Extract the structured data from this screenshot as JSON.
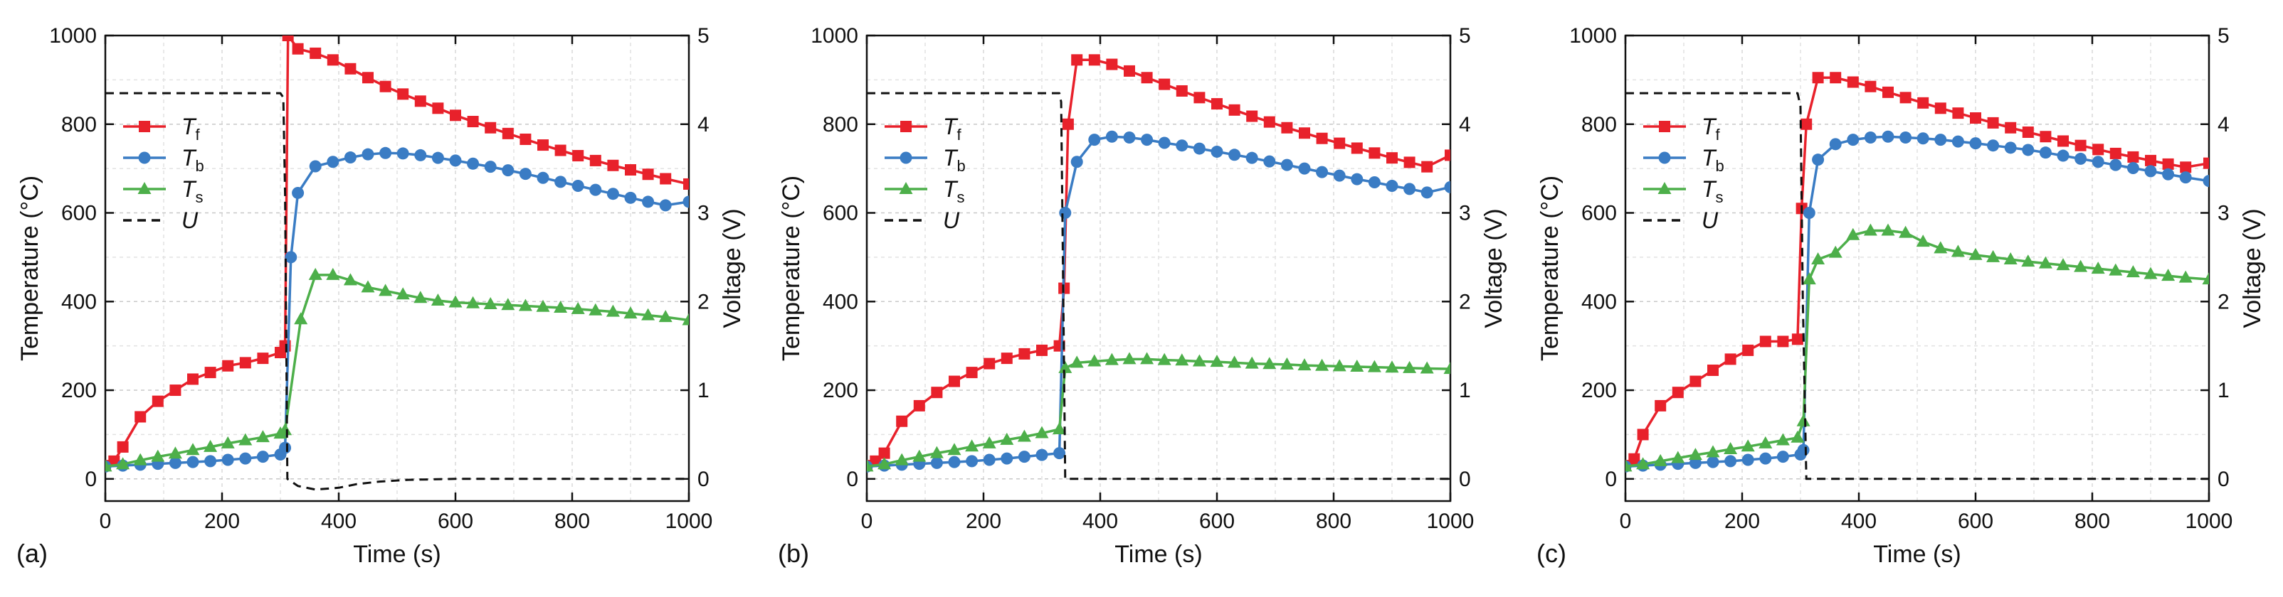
{
  "chart_data": [
    {
      "type": "line",
      "panel_label": "(a)",
      "xlabel": "Time (s)",
      "ylabel": "Temperature (°C)",
      "y2label": "Voltage (V)",
      "xlim": [
        0,
        1000
      ],
      "ylim": [
        -50,
        1000
      ],
      "y2lim": [
        -0.25,
        5
      ],
      "xticks": [
        0,
        200,
        400,
        600,
        800,
        1000
      ],
      "yticks": [
        0,
        200,
        400,
        600,
        800,
        1000
      ],
      "y2ticks": [
        0,
        1,
        2,
        3,
        4,
        5
      ],
      "grid": true,
      "legend_position": "left",
      "series": [
        {
          "name": "Tf",
          "sub": "f",
          "color": "#e8212b",
          "marker": "square",
          "axis": "left",
          "x": [
            0,
            15,
            30,
            60,
            90,
            120,
            150,
            180,
            210,
            240,
            270,
            300,
            308,
            313,
            330,
            360,
            390,
            420,
            450,
            480,
            510,
            540,
            570,
            600,
            630,
            660,
            690,
            720,
            750,
            780,
            810,
            840,
            870,
            900,
            930,
            960,
            1000
          ],
          "y": [
            30,
            40,
            72,
            140,
            175,
            200,
            225,
            240,
            255,
            262,
            272,
            285,
            300,
            1000,
            970,
            960,
            945,
            925,
            905,
            885,
            868,
            852,
            836,
            820,
            806,
            792,
            779,
            766,
            753,
            741,
            729,
            718,
            707,
            697,
            687,
            677,
            665
          ]
        },
        {
          "name": "Tb",
          "sub": "b",
          "color": "#3a7cc4",
          "marker": "circle",
          "axis": "left",
          "x": [
            0,
            30,
            60,
            90,
            120,
            150,
            180,
            210,
            240,
            270,
            300,
            308,
            318,
            330,
            360,
            390,
            420,
            450,
            480,
            510,
            540,
            570,
            600,
            630,
            660,
            690,
            720,
            750,
            780,
            810,
            840,
            870,
            900,
            930,
            960,
            1000
          ],
          "y": [
            28,
            30,
            32,
            34,
            36,
            38,
            40,
            43,
            46,
            50,
            55,
            70,
            500,
            645,
            705,
            715,
            725,
            732,
            735,
            734,
            730,
            724,
            718,
            711,
            704,
            696,
            688,
            679,
            670,
            661,
            652,
            643,
            634,
            625,
            617,
            625
          ]
        },
        {
          "name": "Ts",
          "sub": "s",
          "color": "#4daf4a",
          "marker": "triangle",
          "axis": "left",
          "x": [
            0,
            30,
            60,
            90,
            120,
            150,
            180,
            210,
            240,
            270,
            300,
            308,
            335,
            360,
            390,
            420,
            450,
            480,
            510,
            540,
            570,
            600,
            630,
            660,
            690,
            720,
            750,
            780,
            810,
            840,
            870,
            900,
            930,
            960,
            1000
          ],
          "y": [
            28,
            33,
            42,
            50,
            57,
            65,
            72,
            80,
            87,
            94,
            102,
            110,
            360,
            460,
            460,
            448,
            432,
            424,
            416,
            408,
            402,
            398,
            396,
            394,
            392,
            390,
            388,
            386,
            383,
            380,
            377,
            373,
            369,
            365,
            358
          ]
        },
        {
          "name": "U",
          "color": "#111111",
          "marker": "none",
          "dash": true,
          "axis": "right",
          "x": [
            0,
            300,
            305,
            308,
            312,
            330,
            360,
            400,
            430,
            470,
            520,
            600,
            700,
            800,
            900,
            1000
          ],
          "y": [
            4.35,
            4.35,
            4.3,
            3.2,
            0.0,
            -0.08,
            -0.12,
            -0.1,
            -0.06,
            -0.03,
            -0.01,
            0.0,
            0.0,
            0.0,
            0.0,
            0.0
          ]
        }
      ]
    },
    {
      "type": "line",
      "panel_label": "(b)",
      "xlabel": "Time (s)",
      "ylabel": "Temperature (°C)",
      "y2label": "Voltage (V)",
      "xlim": [
        0,
        1000
      ],
      "ylim": [
        -50,
        1000
      ],
      "y2lim": [
        -0.25,
        5
      ],
      "xticks": [
        0,
        200,
        400,
        600,
        800,
        1000
      ],
      "yticks": [
        0,
        200,
        400,
        600,
        800,
        1000
      ],
      "y2ticks": [
        0,
        1,
        2,
        3,
        4,
        5
      ],
      "grid": true,
      "legend_position": "left",
      "series": [
        {
          "name": "Tf",
          "sub": "f",
          "color": "#e8212b",
          "marker": "square",
          "axis": "left",
          "x": [
            0,
            15,
            30,
            60,
            90,
            120,
            150,
            180,
            210,
            240,
            270,
            300,
            330,
            338,
            345,
            360,
            390,
            420,
            450,
            480,
            510,
            540,
            570,
            600,
            630,
            660,
            690,
            720,
            750,
            780,
            810,
            840,
            870,
            900,
            930,
            960,
            1000
          ],
          "y": [
            30,
            40,
            58,
            130,
            165,
            195,
            220,
            240,
            260,
            272,
            282,
            290,
            300,
            430,
            800,
            945,
            945,
            935,
            920,
            905,
            890,
            875,
            860,
            846,
            832,
            818,
            805,
            792,
            780,
            768,
            757,
            746,
            735,
            724,
            714,
            704,
            730
          ]
        },
        {
          "name": "Tb",
          "sub": "b",
          "color": "#3a7cc4",
          "marker": "circle",
          "axis": "left",
          "x": [
            0,
            30,
            60,
            90,
            120,
            150,
            180,
            210,
            240,
            270,
            300,
            330,
            340,
            360,
            390,
            420,
            450,
            480,
            510,
            540,
            570,
            600,
            630,
            660,
            690,
            720,
            750,
            780,
            810,
            840,
            870,
            900,
            930,
            960,
            1000
          ],
          "y": [
            28,
            30,
            32,
            34,
            36,
            38,
            40,
            43,
            46,
            50,
            54,
            58,
            600,
            715,
            765,
            772,
            770,
            765,
            758,
            752,
            745,
            738,
            731,
            724,
            716,
            708,
            700,
            692,
            684,
            676,
            669,
            661,
            654,
            646,
            658
          ]
        },
        {
          "name": "Ts",
          "sub": "s",
          "color": "#4daf4a",
          "marker": "triangle",
          "axis": "left",
          "x": [
            0,
            30,
            60,
            90,
            120,
            150,
            180,
            210,
            240,
            270,
            300,
            330,
            340,
            360,
            390,
            420,
            450,
            480,
            510,
            540,
            570,
            600,
            630,
            660,
            690,
            720,
            750,
            780,
            810,
            840,
            870,
            900,
            930,
            960,
            1000
          ],
          "y": [
            28,
            33,
            42,
            50,
            58,
            65,
            73,
            80,
            88,
            95,
            103,
            112,
            250,
            262,
            265,
            268,
            270,
            270,
            268,
            267,
            265,
            264,
            262,
            260,
            259,
            258,
            256,
            255,
            254,
            253,
            252,
            251,
            250,
            249,
            248
          ]
        },
        {
          "name": "U",
          "color": "#111111",
          "marker": "none",
          "dash": true,
          "axis": "right",
          "x": [
            0,
            330,
            333,
            336,
            340,
            360,
            400,
            500,
            600,
            700,
            800,
            900,
            1000
          ],
          "y": [
            4.35,
            4.35,
            4.25,
            2.5,
            0.0,
            0.0,
            0.0,
            0.0,
            0.0,
            0.0,
            0.0,
            0.0,
            0.0
          ]
        }
      ]
    },
    {
      "type": "line",
      "panel_label": "(c)",
      "xlabel": "Time (s)",
      "ylabel": "Temperature (°C)",
      "y2label": "Voltage (V)",
      "xlim": [
        0,
        1000
      ],
      "ylim": [
        -50,
        1000
      ],
      "y2lim": [
        -0.25,
        5
      ],
      "xticks": [
        0,
        200,
        400,
        600,
        800,
        1000
      ],
      "yticks": [
        0,
        200,
        400,
        600,
        800,
        1000
      ],
      "y2ticks": [
        0,
        1,
        2,
        3,
        4,
        5
      ],
      "grid": true,
      "legend_position": "left",
      "series": [
        {
          "name": "Tf",
          "sub": "f",
          "color": "#e8212b",
          "marker": "square",
          "axis": "left",
          "x": [
            0,
            15,
            30,
            60,
            90,
            120,
            150,
            180,
            210,
            240,
            270,
            295,
            302,
            310,
            330,
            360,
            390,
            420,
            450,
            480,
            510,
            540,
            570,
            600,
            630,
            660,
            690,
            720,
            750,
            780,
            810,
            840,
            870,
            900,
            930,
            960,
            1000
          ],
          "y": [
            30,
            45,
            100,
            165,
            195,
            220,
            245,
            270,
            290,
            310,
            310,
            315,
            610,
            800,
            905,
            905,
            895,
            885,
            872,
            860,
            848,
            836,
            825,
            814,
            803,
            792,
            782,
            772,
            762,
            752,
            743,
            734,
            726,
            718,
            710,
            703,
            712
          ]
        },
        {
          "name": "Tb",
          "sub": "b",
          "color": "#3a7cc4",
          "marker": "circle",
          "axis": "left",
          "x": [
            0,
            30,
            60,
            90,
            120,
            150,
            180,
            210,
            240,
            270,
            300,
            305,
            315,
            330,
            360,
            390,
            420,
            450,
            480,
            510,
            540,
            570,
            600,
            630,
            660,
            690,
            720,
            750,
            780,
            810,
            840,
            870,
            900,
            930,
            960,
            1000
          ],
          "y": [
            28,
            30,
            32,
            34,
            36,
            38,
            40,
            43,
            46,
            50,
            55,
            65,
            600,
            720,
            755,
            765,
            770,
            772,
            770,
            768,
            765,
            761,
            757,
            752,
            747,
            742,
            736,
            729,
            722,
            715,
            708,
            701,
            694,
            687,
            680,
            672
          ]
        },
        {
          "name": "Ts",
          "sub": "s",
          "color": "#4daf4a",
          "marker": "triangle",
          "axis": "left",
          "x": [
            0,
            30,
            60,
            90,
            120,
            150,
            180,
            210,
            240,
            270,
            295,
            305,
            315,
            330,
            360,
            390,
            420,
            450,
            480,
            510,
            540,
            570,
            600,
            630,
            660,
            690,
            720,
            750,
            780,
            810,
            840,
            870,
            900,
            930,
            960,
            1000
          ],
          "y": [
            28,
            33,
            40,
            47,
            54,
            60,
            67,
            73,
            80,
            87,
            93,
            130,
            450,
            495,
            510,
            550,
            560,
            560,
            555,
            535,
            520,
            512,
            505,
            500,
            495,
            490,
            486,
            482,
            478,
            474,
            470,
            466,
            462,
            458,
            454,
            450
          ]
        },
        {
          "name": "U",
          "color": "#111111",
          "marker": "none",
          "dash": true,
          "axis": "right",
          "x": [
            0,
            295,
            300,
            304,
            310,
            330,
            400,
            500,
            600,
            700,
            800,
            900,
            1000
          ],
          "y": [
            4.35,
            4.35,
            4.2,
            2.0,
            0.0,
            0.0,
            0.0,
            0.0,
            0.0,
            0.0,
            0.0,
            0.0,
            0.0
          ]
        }
      ]
    }
  ]
}
